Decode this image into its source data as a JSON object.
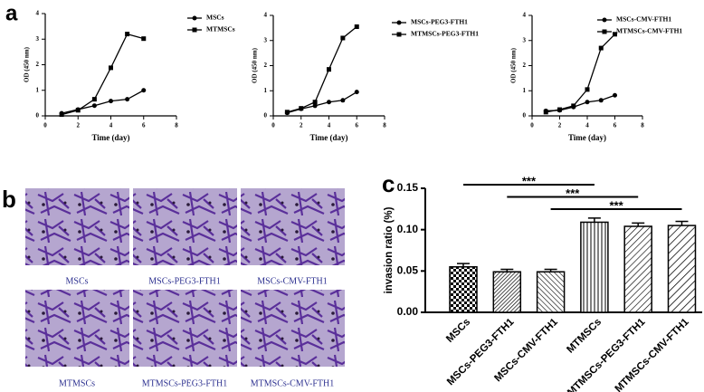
{
  "panel_labels": [
    "a",
    "b",
    "c"
  ],
  "images": {
    "captions": [
      "MSCs",
      "MSCs-PEG3-FTH1",
      "MSCs-CMV-FTH1",
      "MTMSCs",
      "MTMSCs-PEG3-FTH1",
      "MTMSCs-CMV-FTH1"
    ]
  },
  "chart_data": [
    {
      "type": "line",
      "xlabel": "Time (day)",
      "ylabel": "OD (450 nm)",
      "xlim": [
        0,
        8
      ],
      "xticks": [
        0,
        2,
        4,
        6,
        8
      ],
      "ylim": [
        0,
        4
      ],
      "yticks": [
        0,
        1,
        2,
        3,
        4
      ],
      "x": [
        1,
        2,
        3,
        4,
        5,
        6
      ],
      "series": [
        {
          "name": "MSCs",
          "color": "#000000",
          "marker": "circle",
          "values": [
            0.1,
            0.25,
            0.4,
            0.58,
            0.65,
            1.0
          ]
        },
        {
          "name": "MTMSCs",
          "color": "#000000",
          "marker": "square",
          "values": [
            0.05,
            0.22,
            0.65,
            1.88,
            3.2,
            3.02
          ]
        }
      ]
    },
    {
      "type": "line",
      "xlabel": "Time (day)",
      "ylabel": "OD (450 nm)",
      "xlim": [
        0,
        8
      ],
      "xticks": [
        0,
        2,
        4,
        6,
        8
      ],
      "ylim": [
        0,
        4
      ],
      "yticks": [
        0,
        1,
        2,
        3,
        4
      ],
      "x": [
        1,
        2,
        3,
        4,
        5,
        6
      ],
      "series": [
        {
          "name": "MSCs-PEG3-FTH1",
          "color": "#000000",
          "marker": "circle",
          "values": [
            0.12,
            0.28,
            0.4,
            0.55,
            0.62,
            0.95
          ]
        },
        {
          "name": "MTMSCs-PEG3-FTH1",
          "color": "#000000",
          "marker": "square",
          "values": [
            0.15,
            0.3,
            0.55,
            1.85,
            3.1,
            3.55
          ]
        }
      ]
    },
    {
      "type": "line",
      "xlabel": "Time (day)",
      "ylabel": "OD (450 nm)",
      "xlim": [
        0,
        8
      ],
      "xticks": [
        0,
        2,
        4,
        6,
        8
      ],
      "ylim": [
        0,
        4
      ],
      "yticks": [
        0,
        1,
        2,
        3,
        4
      ],
      "x": [
        1,
        2,
        3,
        4,
        5,
        6
      ],
      "series": [
        {
          "name": "MSCs-CMV-FTH1",
          "color": "#000000",
          "marker": "circle",
          "values": [
            0.2,
            0.22,
            0.35,
            0.55,
            0.62,
            0.82
          ]
        },
        {
          "name": "MTMSCs-CMV-FTH1",
          "color": "#000000",
          "marker": "square",
          "values": [
            0.15,
            0.25,
            0.4,
            1.05,
            2.7,
            3.25
          ]
        }
      ]
    },
    {
      "type": "bar",
      "ylabel": "invasion ratio (%)",
      "categories": [
        "MSCs",
        "MSCs-PEG3-FTH1",
        "MSCs-CMV-FTH1",
        "MTMSCs",
        "MTMSCs-PEG3-FTH1",
        "MTMSCs-CMV-FTH1"
      ],
      "values": [
        0.055,
        0.049,
        0.049,
        0.109,
        0.104,
        0.105
      ],
      "errors": [
        0.004,
        0.003,
        0.003,
        0.005,
        0.004,
        0.005
      ],
      "ylim": [
        0,
        0.15
      ],
      "yticks": [
        {
          "value": 0,
          "label": "0.00"
        },
        {
          "value": 0.05,
          "label": "0.05"
        },
        {
          "value": 0.1,
          "label": "0.10"
        },
        {
          "value": 0.15,
          "label": "0.15"
        }
      ],
      "annotations": [
        "***",
        "***",
        "***"
      ]
    }
  ]
}
